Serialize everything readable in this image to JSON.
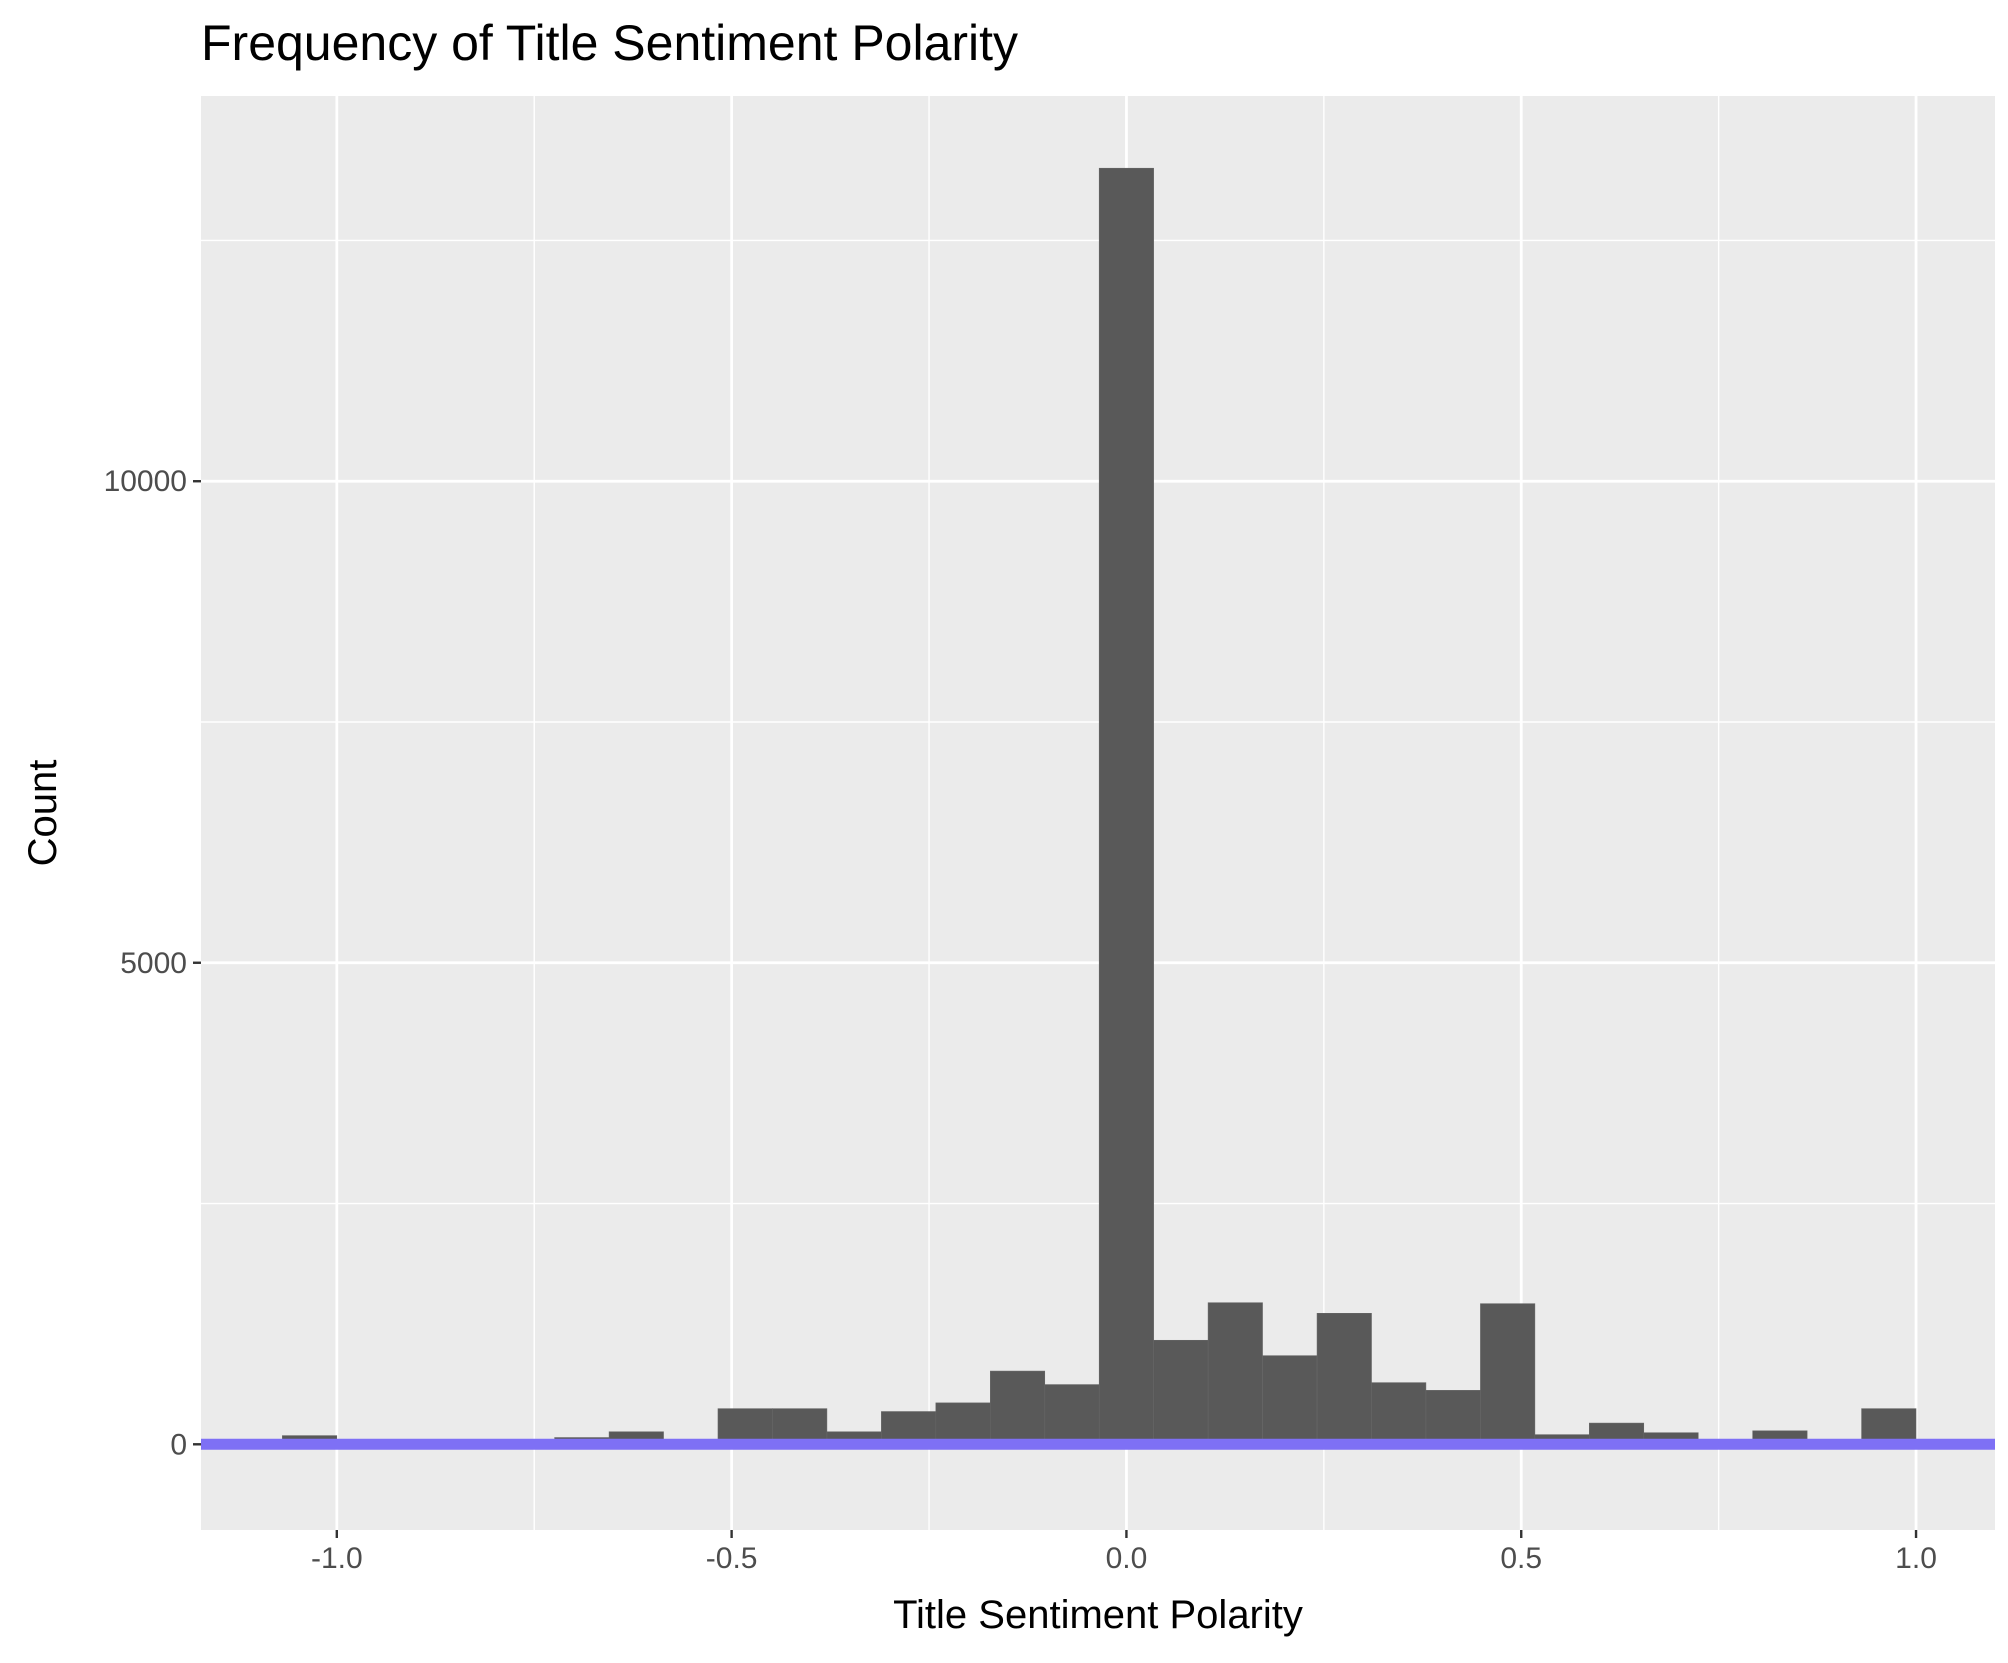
{
  "chart_data": {
    "type": "bar",
    "title": "Frequency of Title Sentiment Polarity",
    "xlabel": "Title Sentiment Polarity",
    "ylabel": "Count",
    "xlim": [
      -1.172,
      1.1
    ],
    "ylim": [
      -890,
      14000
    ],
    "x_ticks": [
      {
        "value": -1.0,
        "label": "-1.0"
      },
      {
        "value": -0.5,
        "label": "-0.5"
      },
      {
        "value": 0.0,
        "label": "0.0"
      },
      {
        "value": 0.5,
        "label": "0.5"
      },
      {
        "value": 1.0,
        "label": "1.0"
      }
    ],
    "x_minor_ticks": [
      -0.75,
      -0.25,
      0.25,
      0.75
    ],
    "y_ticks": [
      {
        "value": 0,
        "label": "0"
      },
      {
        "value": 5000,
        "label": "5000"
      },
      {
        "value": 10000,
        "label": "10000"
      }
    ],
    "y_minor_ticks": [
      2500,
      7500,
      12500
    ],
    "bin_width": 0.0689,
    "x": [
      -1.0345,
      -0.9655,
      -0.8966,
      -0.8276,
      -0.7586,
      -0.6897,
      -0.6207,
      -0.5517,
      -0.4828,
      -0.4138,
      -0.3448,
      -0.2759,
      -0.2069,
      -0.1379,
      -0.069,
      0.0,
      0.069,
      0.1379,
      0.2069,
      0.2759,
      0.3448,
      0.4138,
      0.4828,
      0.5517,
      0.6207,
      0.6897,
      0.7586,
      0.8276,
      0.8966,
      0.9655
    ],
    "values": [
      90,
      0,
      0,
      0,
      0,
      70,
      130,
      0,
      370,
      370,
      130,
      340,
      430,
      760,
      620,
      13250,
      1080,
      1470,
      920,
      1360,
      640,
      560,
      1460,
      100,
      220,
      120,
      0,
      140,
      0,
      370
    ],
    "reference_line": {
      "y": 0,
      "color": "#7e70f5"
    },
    "grid": true,
    "colors": {
      "panel_background": "#ebebeb",
      "grid_major": "#ffffff",
      "bar_fill": "#595959",
      "reference_line": "#7e70f5",
      "tick_mark": "#333333"
    }
  }
}
